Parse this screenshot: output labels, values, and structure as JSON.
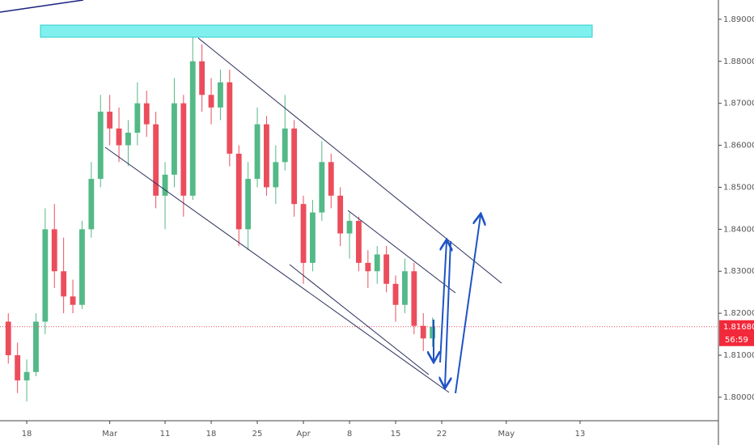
{
  "chart_data": {
    "type": "candlestick",
    "x": [
      -2,
      -1,
      0,
      1,
      2,
      3,
      4,
      5,
      6,
      7,
      8,
      9,
      10,
      11,
      12,
      13,
      14,
      15,
      16,
      17,
      18,
      19,
      20,
      21,
      22,
      23,
      24,
      25,
      26,
      27,
      28,
      29,
      30,
      31,
      32,
      33,
      34,
      35,
      36,
      37,
      38,
      39,
      40,
      41,
      42,
      43,
      44
    ],
    "open": [
      1.818,
      1.81,
      1.804,
      1.806,
      1.818,
      1.84,
      1.83,
      1.824,
      1.822,
      1.84,
      1.852,
      1.868,
      1.864,
      1.86,
      1.863,
      1.87,
      1.865,
      1.848,
      1.853,
      1.87,
      1.848,
      1.88,
      1.872,
      1.869,
      1.875,
      1.858,
      1.84,
      1.852,
      1.865,
      1.85,
      1.856,
      1.864,
      1.846,
      1.832,
      1.844,
      1.856,
      1.848,
      1.839,
      1.842,
      1.832,
      1.83,
      1.834,
      1.827,
      1.822,
      1.83,
      1.817,
      1.814
    ],
    "high": [
      1.82,
      1.813,
      1.809,
      1.82,
      1.845,
      1.846,
      1.838,
      1.828,
      1.842,
      1.856,
      1.872,
      1.872,
      1.869,
      1.866,
      1.875,
      1.873,
      1.868,
      1.856,
      1.876,
      1.872,
      1.886,
      1.884,
      1.876,
      1.878,
      1.878,
      1.86,
      1.856,
      1.869,
      1.867,
      1.86,
      1.872,
      1.866,
      1.848,
      1.847,
      1.861,
      1.858,
      1.85,
      1.844,
      1.843,
      1.835,
      1.836,
      1.836,
      1.829,
      1.833,
      1.832,
      1.82,
      1.819
    ],
    "low": [
      1.808,
      1.801,
      1.799,
      1.805,
      1.815,
      1.826,
      1.82,
      1.82,
      1.821,
      1.838,
      1.85,
      1.86,
      1.856,
      1.855,
      1.86,
      1.862,
      1.845,
      1.84,
      1.85,
      1.843,
      1.847,
      1.868,
      1.865,
      1.866,
      1.855,
      1.836,
      1.835,
      1.85,
      1.848,
      1.846,
      1.854,
      1.843,
      1.827,
      1.83,
      1.842,
      1.845,
      1.836,
      1.833,
      1.83,
      1.826,
      1.827,
      1.825,
      1.818,
      1.82,
      1.815,
      1.811,
      1.812
    ],
    "close": [
      1.81,
      1.804,
      1.806,
      1.818,
      1.84,
      1.83,
      1.824,
      1.822,
      1.84,
      1.852,
      1.868,
      1.864,
      1.86,
      1.863,
      1.87,
      1.865,
      1.848,
      1.853,
      1.87,
      1.848,
      1.88,
      1.872,
      1.869,
      1.875,
      1.858,
      1.84,
      1.852,
      1.865,
      1.85,
      1.856,
      1.864,
      1.846,
      1.832,
      1.844,
      1.856,
      1.848,
      1.839,
      1.842,
      1.832,
      1.83,
      1.834,
      1.827,
      1.822,
      1.83,
      1.817,
      1.814,
      1.8168
    ],
    "up_color": "#53b987",
    "down_color": "#eb4d5c",
    "xlim": [
      -2.9,
      75
    ],
    "ylim": [
      1.7944,
      1.8946
    ],
    "xticks": [
      {
        "value": 0,
        "label": "18"
      },
      {
        "value": 9,
        "label": "Mar"
      },
      {
        "value": 15,
        "label": "11"
      },
      {
        "value": 20,
        "label": "18"
      },
      {
        "value": 25,
        "label": "25"
      },
      {
        "value": 30,
        "label": "Apr"
      },
      {
        "value": 35,
        "label": "8"
      },
      {
        "value": 40,
        "label": "15"
      },
      {
        "value": 45,
        "label": "22"
      },
      {
        "value": 52,
        "label": "May"
      },
      {
        "value": 60,
        "label": "13"
      }
    ],
    "yticks": [
      {
        "value": 1.8,
        "label": "1.80000"
      },
      {
        "value": 1.81,
        "label": "1.81000"
      },
      {
        "value": 1.82,
        "label": "1.82000"
      },
      {
        "value": 1.83,
        "label": "1.83000"
      },
      {
        "value": 1.84,
        "label": "1.84000"
      },
      {
        "value": 1.85,
        "label": "1.85000"
      },
      {
        "value": 1.86,
        "label": "1.86000"
      },
      {
        "value": 1.87,
        "label": "1.87000"
      },
      {
        "value": 1.88,
        "label": "1.88000"
      },
      {
        "value": 1.89,
        "label": "1.89000"
      }
    ],
    "last_price": {
      "value": 1.8168,
      "label": "1.81680"
    },
    "countdown": "56:59"
  }
}
